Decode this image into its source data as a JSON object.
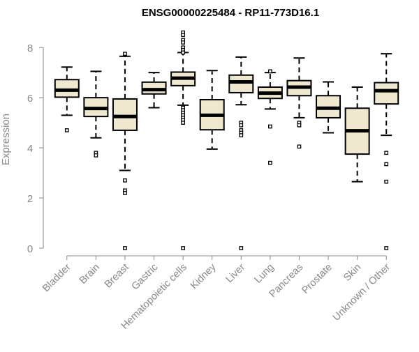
{
  "colors": {
    "box_fill": "#efe8d0",
    "box_stroke": "#000000",
    "axis": "#888888",
    "tick_label": "#888888",
    "title": "#000000"
  },
  "chart_data": {
    "type": "boxplot",
    "title": "ENSG00000225484 - RP11-773D16.1",
    "xlabel": "",
    "ylabel": "Expression",
    "ylim": [
      0,
      8.7
    ],
    "y_ticks": [
      0,
      2,
      4,
      6,
      8
    ],
    "grid": false,
    "categories": [
      "Bladder",
      "Brain",
      "Breast",
      "Gastric",
      "Hematopoietic cells",
      "Kidney",
      "Liver",
      "Lung",
      "Pancreas",
      "Prostate",
      "Skin",
      "Unknown / Other"
    ],
    "boxes": [
      {
        "name": "Bladder",
        "whisker_low": 5.3,
        "q1": 6.02,
        "median": 6.3,
        "q3": 6.72,
        "whisker_high": 7.22,
        "outliers": [
          4.7
        ]
      },
      {
        "name": "Brain",
        "whisker_low": 4.4,
        "q1": 5.25,
        "median": 5.57,
        "q3": 6.0,
        "whisker_high": 7.05,
        "outliers": [
          3.8,
          3.7
        ]
      },
      {
        "name": "Breast",
        "whisker_low": 3.1,
        "q1": 4.7,
        "median": 5.25,
        "q3": 5.95,
        "whisker_high": 7.65,
        "outliers": [
          7.75,
          2.7,
          2.3,
          2.2,
          0
        ]
      },
      {
        "name": "Gastric",
        "whisker_low": 5.6,
        "q1": 6.15,
        "median": 6.32,
        "q3": 6.62,
        "whisker_high": 7.0,
        "outliers": []
      },
      {
        "name": "Hematopoietic cells",
        "whisker_low": 5.7,
        "q1": 6.48,
        "median": 6.78,
        "q3": 7.02,
        "whisker_high": 7.8,
        "outliers": [
          8.6,
          8.5,
          8.3,
          8.2,
          8.0,
          7.9,
          7.8,
          5.6,
          5.5,
          5.4,
          5.3,
          5.2,
          5.1,
          5.0,
          0
        ]
      },
      {
        "name": "Kidney",
        "whisker_low": 3.95,
        "q1": 4.72,
        "median": 5.3,
        "q3": 5.92,
        "whisker_high": 7.08,
        "outliers": []
      },
      {
        "name": "Liver",
        "whisker_low": 5.72,
        "q1": 6.2,
        "median": 6.63,
        "q3": 6.9,
        "whisker_high": 7.62,
        "outliers": [
          5.0,
          4.9,
          4.7,
          4.6,
          4.5,
          0
        ]
      },
      {
        "name": "Lung",
        "whisker_low": 5.55,
        "q1": 5.97,
        "median": 6.18,
        "q3": 6.42,
        "whisker_high": 7.0,
        "outliers": [
          7.05,
          4.85,
          3.4
        ]
      },
      {
        "name": "Pancreas",
        "whisker_low": 5.2,
        "q1": 6.08,
        "median": 6.42,
        "q3": 6.68,
        "whisker_high": 7.58,
        "outliers": [
          5.0,
          4.9,
          4.05
        ]
      },
      {
        "name": "Prostate",
        "whisker_low": 4.6,
        "q1": 5.2,
        "median": 5.58,
        "q3": 6.08,
        "whisker_high": 6.63,
        "outliers": []
      },
      {
        "name": "Skin",
        "whisker_low": 2.65,
        "q1": 3.75,
        "median": 4.68,
        "q3": 5.58,
        "whisker_high": 6.42,
        "outliers": []
      },
      {
        "name": "Unknown / Other",
        "whisker_low": 4.5,
        "q1": 5.75,
        "median": 6.28,
        "q3": 6.6,
        "whisker_high": 7.75,
        "outliers": [
          3.8,
          3.35,
          2.65,
          0
        ]
      }
    ]
  }
}
